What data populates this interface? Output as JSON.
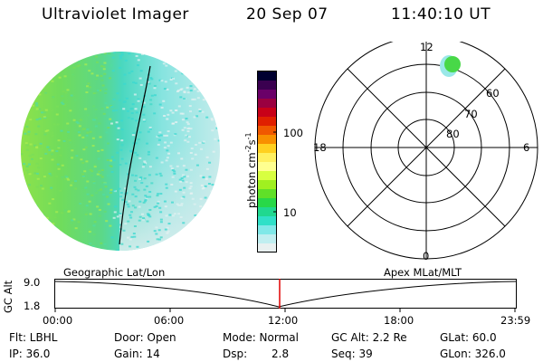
{
  "header": {
    "instrument": "Ultraviolet Imager",
    "date": "20 Sep 07",
    "time": "11:40:10 UT"
  },
  "colorbar": {
    "label": "photon cm",
    "exp1": "-2",
    "mid": "s",
    "exp2": "-1",
    "ticks": [
      "100",
      "10"
    ],
    "colors": [
      "#000030",
      "#3a0050",
      "#6a0068",
      "#9a0040",
      "#c80018",
      "#e02000",
      "#f05800",
      "#f89000",
      "#ffd020",
      "#fff060",
      "#ffff90",
      "#d8ff40",
      "#a0f020",
      "#60e028",
      "#28d848",
      "#20d890",
      "#30e0c8",
      "#80e8e8",
      "#c0eef0",
      "#e8f0f0"
    ]
  },
  "polar": {
    "mlt_labels": [
      "12",
      "18",
      "6",
      "0"
    ],
    "lat_labels": [
      "60",
      "70",
      "80"
    ]
  },
  "timeline": {
    "left_label": "Geographic Lat/Lon",
    "right_label": "Apex  MLat/MLT",
    "yaxis_title": "GC Alt",
    "y_ticks": [
      "9.0",
      "1.8"
    ],
    "x_ticks": [
      "00:00",
      "06:00",
      "12:00",
      "18:00",
      "23:59"
    ]
  },
  "info": {
    "flt": "Flt: LBHL",
    "ip": "IP: 36.0",
    "door": "Door: Open",
    "gain": "Gain: 14",
    "mode": "Mode: Normal",
    "dsp_label": "Dsp:",
    "dsp_value": "2.8",
    "gcalt": "GC Alt: 2.2 Re",
    "seq": "Seq: 39",
    "glat": "GLat:  60.0",
    "glon": "GLon: 326.0"
  },
  "colors": {
    "bright_green": "#78e03c",
    "mid_green": "#6edc64",
    "cyan": "#46dcc8",
    "pale": "#d4ecec",
    "cursor": "#e00000"
  }
}
